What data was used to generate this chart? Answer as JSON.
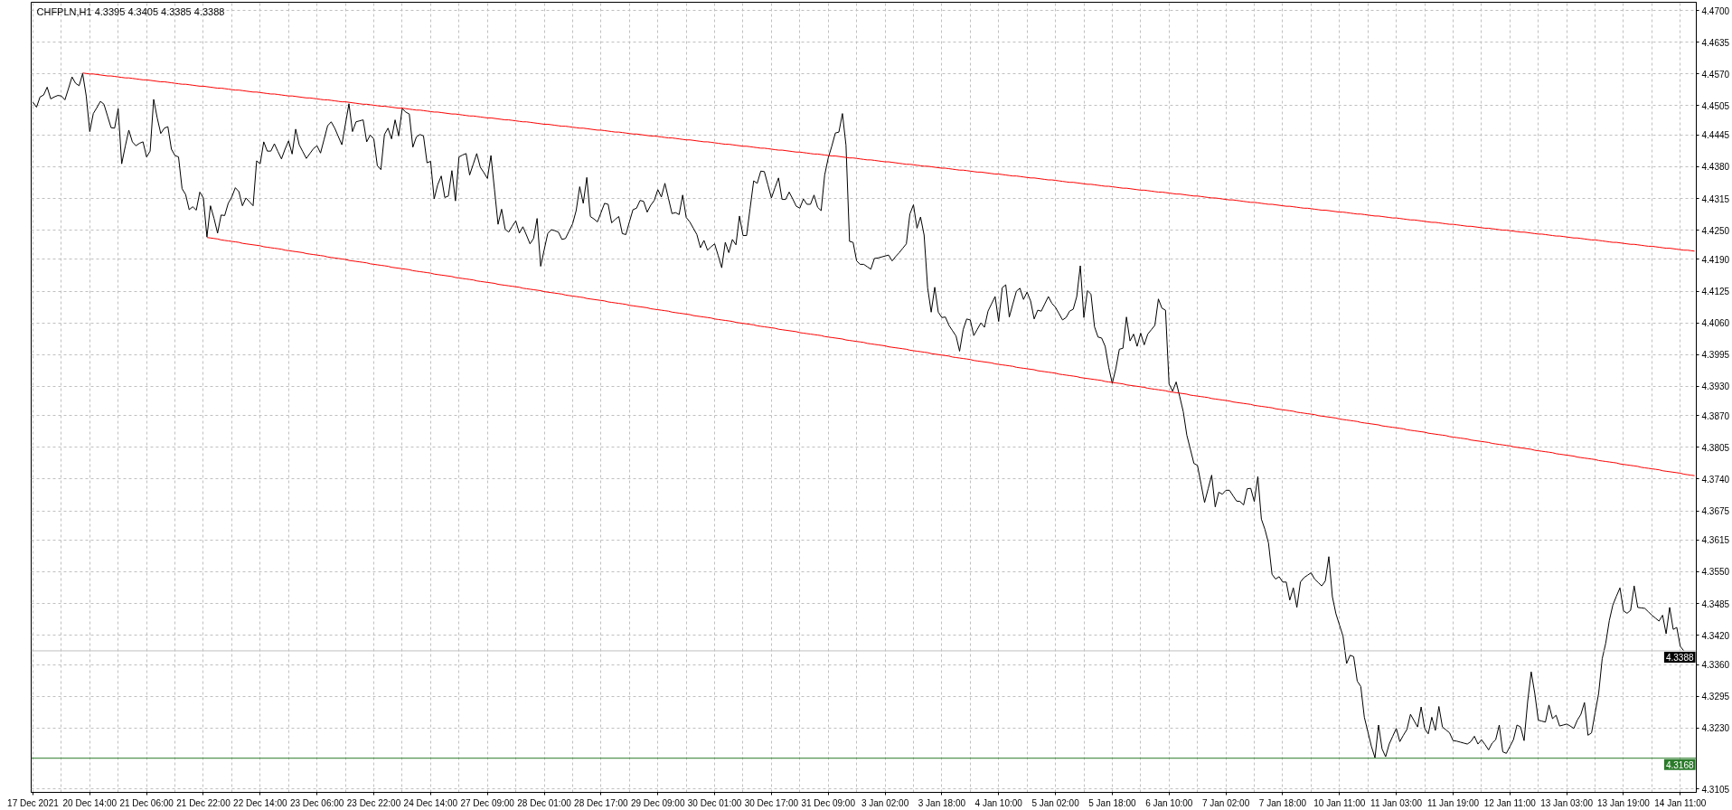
{
  "chart_data": {
    "type": "line",
    "title": "CHFPLN,H1  4.3395 4.3405 4.3385 4.3388",
    "categories": [
      "17 Dec 2021",
      null,
      null,
      null,
      null,
      null,
      null,
      null,
      null,
      null,
      null,
      null,
      null,
      null,
      null,
      null,
      "20 Dec 14:00",
      null,
      null,
      null,
      null,
      null,
      null,
      null,
      null,
      null,
      null,
      null,
      null,
      null,
      null,
      null,
      "21 Dec 06:00",
      null,
      null,
      null,
      null,
      null,
      null,
      null,
      null,
      null,
      null,
      null,
      null,
      null,
      null,
      null,
      "21 Dec 22:00",
      null,
      null,
      null,
      null,
      null,
      null,
      null,
      null,
      null,
      null,
      null,
      null,
      null,
      null,
      null,
      "22 Dec 14:00",
      null,
      null,
      null,
      null,
      null,
      null,
      null,
      null,
      null,
      null,
      null,
      null,
      null,
      null,
      null,
      "23 Dec 06:00",
      null,
      null,
      null,
      null,
      null,
      null,
      null,
      null,
      null,
      null,
      null,
      null,
      null,
      null,
      null,
      "23 Dec 22:00",
      null,
      null,
      null,
      null,
      null,
      null,
      null,
      null,
      null,
      null,
      null,
      null,
      null,
      null,
      null,
      "24 Dec 14:00",
      null,
      null,
      null,
      null,
      null,
      null,
      null,
      null,
      null,
      null,
      null,
      null,
      null,
      null,
      null,
      "27 Dec 09:00",
      null,
      null,
      null,
      null,
      null,
      null,
      null,
      null,
      null,
      null,
      null,
      null,
      null,
      null,
      null,
      "28 Dec 01:00",
      null,
      null,
      null,
      null,
      null,
      null,
      null,
      null,
      null,
      null,
      null,
      null,
      null,
      null,
      null,
      "28 Dec 17:00",
      null,
      null,
      null,
      null,
      null,
      null,
      null,
      null,
      null,
      null,
      null,
      null,
      null,
      null,
      null,
      "29 Dec 09:00",
      null,
      null,
      null,
      null,
      null,
      null,
      null,
      null,
      null,
      null,
      null,
      null,
      null,
      null,
      null,
      "30 Dec 01:00",
      null,
      null,
      null,
      null,
      null,
      null,
      null,
      null,
      null,
      null,
      null,
      null,
      null,
      null,
      null,
      "30 Dec 17:00",
      null,
      null,
      null,
      null,
      null,
      null,
      null,
      null,
      null,
      null,
      null,
      null,
      null,
      null,
      null,
      "31 Dec 09:00",
      null,
      null,
      null,
      null,
      null,
      null,
      null,
      null,
      null,
      null,
      null,
      null,
      null,
      null,
      null,
      "3 Jan 02:00",
      null,
      null,
      null,
      null,
      null,
      null,
      null,
      null,
      null,
      null,
      null,
      null,
      null,
      null,
      null,
      "3 Jan 18:00",
      null,
      null,
      null,
      null,
      null,
      null,
      null,
      null,
      null,
      null,
      null,
      null,
      null,
      null,
      null,
      "4 Jan 10:00",
      null,
      null,
      null,
      null,
      null,
      null,
      null,
      null,
      null,
      null,
      null,
      null,
      null,
      null,
      null,
      "5 Jan 02:00",
      null,
      null,
      null,
      null,
      null,
      null,
      null,
      null,
      null,
      null,
      null,
      null,
      null,
      null,
      null,
      "5 Jan 18:00",
      null,
      null,
      null,
      null,
      null,
      null,
      null,
      null,
      null,
      null,
      null,
      null,
      null,
      null,
      null,
      "6 Jan 10:00",
      null,
      null,
      null,
      null,
      null,
      null,
      null,
      null,
      null,
      null,
      null,
      null,
      null,
      null,
      null,
      "7 Jan 02:00",
      null,
      null,
      null,
      null,
      null,
      null,
      null,
      null,
      null,
      null,
      null,
      null,
      null,
      null,
      null,
      "7 Jan 18:00",
      null,
      null,
      null,
      null,
      null,
      null,
      null,
      null,
      null,
      null,
      null,
      null,
      null,
      null,
      null,
      "10 Jan 11:00",
      null,
      null,
      null,
      null,
      null,
      null,
      null,
      null,
      null,
      null,
      null,
      null,
      null,
      null,
      null,
      "11 Jan 03:00",
      null,
      null,
      null,
      null,
      null,
      null,
      null,
      null,
      null,
      null,
      null,
      null,
      null,
      null,
      null,
      "11 Jan 19:00",
      null,
      null,
      null,
      null,
      null,
      null,
      null,
      null,
      null,
      null,
      null,
      null,
      null,
      null,
      null,
      "12 Jan 11:00",
      null,
      null,
      null,
      null,
      null,
      null,
      null,
      null,
      null,
      null,
      null,
      null,
      null,
      null,
      null,
      "13 Jan 03:00",
      null,
      null,
      null,
      null,
      null,
      null,
      null,
      null,
      null,
      null,
      null,
      null,
      null,
      null,
      null,
      "13 Jan 19:00",
      null,
      null,
      null,
      null,
      null,
      null,
      null,
      null,
      null,
      null,
      null,
      null,
      null,
      null,
      null,
      "14 Jan 11:00",
      null,
      null,
      null,
      null
    ],
    "series": [
      {
        "color": "#000000",
        "values": [
          4.4512,
          4.4502,
          4.4523,
          4.4527,
          4.4543,
          4.4519,
          4.4523,
          4.4526,
          4.4525,
          4.4517,
          4.454,
          4.4564,
          4.4551,
          4.4546,
          4.4571,
          4.4525,
          4.4452,
          4.4489,
          4.4501,
          4.4514,
          4.4508,
          4.4484,
          4.446,
          4.4459,
          4.4499,
          4.4386,
          4.4422,
          4.4455,
          4.4431,
          4.4423,
          4.4428,
          4.4431,
          4.44,
          4.4412,
          4.4518,
          4.448,
          4.4448,
          4.4459,
          4.4462,
          4.4416,
          4.4403,
          4.44,
          4.4335,
          4.4323,
          4.4292,
          4.4298,
          4.4291,
          4.4328,
          4.4316,
          4.4236,
          4.43,
          4.4274,
          4.4244,
          4.4281,
          4.428,
          4.4305,
          4.4318,
          4.4337,
          4.4329,
          4.43,
          4.4316,
          4.4308,
          4.43,
          4.4392,
          4.4386,
          4.4431,
          4.4412,
          4.4412,
          4.4427,
          4.4411,
          4.4396,
          4.4416,
          4.4433,
          4.4406,
          4.4457,
          4.4425,
          4.4411,
          4.4397,
          4.4407,
          4.4417,
          4.4423,
          4.4408,
          4.4436,
          4.4464,
          4.4472,
          4.4459,
          4.4442,
          4.4425,
          4.4467,
          4.4509,
          4.4452,
          4.4472,
          4.4474,
          4.4476,
          4.4431,
          4.4445,
          4.4437,
          4.4382,
          4.4374,
          4.4446,
          4.4459,
          4.4437,
          4.4476,
          4.4443,
          4.4499,
          4.4492,
          4.4488,
          4.442,
          4.4441,
          4.4446,
          4.4443,
          4.4388,
          4.4391,
          4.4314,
          4.4343,
          4.4361,
          4.4317,
          4.432,
          4.4372,
          4.431,
          4.44,
          4.4404,
          4.4407,
          4.4363,
          4.4385,
          4.4407,
          4.4379,
          4.4368,
          4.4356,
          4.4403,
          4.4333,
          4.4262,
          4.4293,
          4.4252,
          4.4246,
          4.4258,
          4.4269,
          4.4244,
          4.4257,
          4.424,
          4.4222,
          4.4233,
          4.4274,
          4.4176,
          4.421,
          4.4243,
          4.4251,
          4.4249,
          4.4246,
          4.4231,
          4.4233,
          4.4248,
          4.4263,
          4.429,
          4.4339,
          4.4305,
          4.4358,
          4.4278,
          4.4273,
          4.4267,
          4.4286,
          4.4305,
          4.4303,
          4.4265,
          4.4272,
          4.4278,
          4.4243,
          4.4241,
          4.4267,
          4.4292,
          4.4295,
          4.4311,
          4.4309,
          4.4287,
          4.4301,
          4.4311,
          4.4333,
          4.4318,
          4.4346,
          4.4315,
          4.4284,
          4.4286,
          4.4282,
          4.4322,
          4.4276,
          4.4267,
          4.4254,
          4.4241,
          4.4214,
          4.4229,
          4.4209,
          4.4216,
          4.4222,
          4.4198,
          4.4173,
          4.4225,
          4.4204,
          4.4231,
          4.422,
          4.4279,
          4.4239,
          4.4239,
          4.4295,
          4.4351,
          4.4346,
          4.4371,
          4.437,
          4.4343,
          4.4316,
          4.4337,
          4.4357,
          4.4313,
          4.4313,
          4.4328,
          4.4314,
          4.4299,
          4.4295,
          4.4314,
          4.4303,
          4.4303,
          4.4322,
          4.4297,
          4.429,
          4.4363,
          4.4398,
          4.4422,
          4.4449,
          4.4451,
          4.4489,
          4.4424,
          4.4227,
          4.4225,
          4.4187,
          4.418,
          4.418,
          4.4175,
          4.417,
          4.4192,
          4.4193,
          4.4195,
          4.4197,
          4.4199,
          4.4187,
          4.4196,
          4.4204,
          4.4213,
          4.4222,
          4.4283,
          4.4302,
          4.4254,
          4.4277,
          4.424,
          4.4132,
          4.4082,
          4.4133,
          4.4082,
          4.4071,
          4.4072,
          4.4055,
          4.4044,
          4.4033,
          4.4002,
          4.4046,
          4.4068,
          4.4066,
          4.4034,
          4.4047,
          4.406,
          4.4051,
          4.4084,
          4.4099,
          4.4114,
          4.4063,
          4.4132,
          4.4138,
          4.4072,
          4.4099,
          4.4125,
          4.4131,
          4.4108,
          4.4123,
          4.4105,
          4.4068,
          4.4086,
          4.4084,
          4.4099,
          4.4114,
          4.41,
          4.4092,
          4.4079,
          4.4066,
          4.4071,
          4.4084,
          4.4088,
          4.4114,
          4.4177,
          4.4071,
          4.4126,
          4.4119,
          4.4052,
          4.4031,
          4.4029,
          4.4012,
          4.3969,
          4.3936,
          4.3966,
          4.4006,
          4.4008,
          4.4072,
          4.4023,
          4.4037,
          4.4012,
          4.4039,
          4.4015,
          4.4037,
          4.4046,
          4.4055,
          4.4109,
          4.409,
          4.4086,
          4.3935,
          4.392,
          4.3939,
          4.3909,
          4.3878,
          4.383,
          4.3801,
          4.3772,
          4.3768,
          4.373,
          4.3692,
          4.372,
          4.3748,
          4.3683,
          4.3713,
          4.3709,
          4.3717,
          4.3717,
          4.3706,
          4.3695,
          4.3694,
          4.3687,
          4.372,
          4.3721,
          4.3694,
          4.3745,
          4.3658,
          4.3637,
          4.3609,
          4.3545,
          4.3535,
          4.354,
          4.3529,
          4.3529,
          4.3492,
          4.3517,
          4.3477,
          4.3529,
          4.3538,
          4.3543,
          4.3548,
          4.3535,
          4.3528,
          4.3521,
          4.3531,
          4.3581,
          4.3499,
          4.3464,
          4.3441,
          4.3418,
          4.3362,
          4.3379,
          4.3376,
          4.3326,
          4.3315,
          4.3252,
          4.3222,
          4.3192,
          4.3169,
          4.3236,
          4.3187,
          4.3171,
          4.3197,
          4.3213,
          4.3229,
          4.3202,
          4.3215,
          4.3227,
          4.3258,
          4.3245,
          4.3232,
          4.3273,
          4.3229,
          4.3218,
          4.3252,
          4.3225,
          4.3274,
          4.3232,
          4.3226,
          4.322,
          4.3204,
          4.3203,
          4.3201,
          4.3199,
          4.3197,
          4.3202,
          4.3213,
          4.3197,
          4.3206,
          4.3196,
          4.3185,
          4.3199,
          4.3206,
          4.3236,
          4.3181,
          4.3178,
          4.3192,
          4.3206,
          4.3236,
          4.3232,
          4.3204,
          4.3284,
          4.3345,
          4.3301,
          4.3246,
          4.3244,
          4.3242,
          4.3277,
          4.3249,
          4.3256,
          4.3234,
          4.3236,
          4.3238,
          4.3234,
          4.3229,
          4.3246,
          4.3258,
          4.3282,
          4.3215,
          4.322,
          4.3261,
          4.3301,
          4.3372,
          4.3404,
          4.345,
          4.3482,
          4.35,
          4.3517,
          4.347,
          4.3465,
          4.3471,
          4.3521,
          4.3477,
          4.3476,
          4.3475,
          4.3468,
          4.3461,
          4.3455,
          4.3449,
          4.3461,
          4.3423,
          4.3477,
          4.3432,
          4.3436,
          4.3397,
          4.3388,
          null,
          null,
          null
        ]
      },
      {
        "color": "#ff0000",
        "values": [
          null,
          null,
          null,
          null,
          null,
          null,
          null,
          null,
          null,
          null,
          null,
          null,
          null,
          null,
          4.4572,
          4.4571,
          4.457,
          4.457,
          4.4569,
          4.4568,
          4.4567,
          4.4566,
          4.4566,
          4.4565,
          4.4564,
          4.4563,
          4.4562,
          4.4562,
          4.4561,
          4.456,
          4.4559,
          4.4558,
          4.4558,
          4.4557,
          4.4556,
          4.4555,
          4.4554,
          4.4554,
          4.4553,
          4.4552,
          4.4551,
          4.455,
          4.4549,
          4.4549,
          4.4548,
          4.4547,
          4.4546,
          4.4545,
          4.4545,
          4.4544,
          4.4543,
          4.4542,
          4.4541,
          4.4541,
          4.454,
          4.4539,
          4.4538,
          4.4537,
          4.4537,
          4.4536,
          4.4535,
          4.4534,
          4.4533,
          4.4533,
          4.4532,
          4.4531,
          4.453,
          4.4529,
          4.4529,
          4.4528,
          4.4527,
          4.4526,
          4.4525,
          4.4525,
          4.4524,
          4.4523,
          4.4522,
          4.4521,
          4.4521,
          4.452,
          4.4519,
          4.4518,
          4.4517,
          4.4517,
          4.4516,
          4.4515,
          4.4514,
          4.4513,
          4.4513,
          4.4512,
          4.4511,
          4.451,
          4.4509,
          4.4508,
          4.4508,
          4.4507,
          4.4506,
          4.4505,
          4.4504,
          4.4504,
          4.4503,
          4.4502,
          4.4501,
          4.45,
          4.45,
          4.4499,
          4.4498,
          4.4497,
          4.4496,
          4.4496,
          4.4495,
          4.4494,
          4.4493,
          4.4492,
          4.4492,
          4.4491,
          4.449,
          4.4489,
          4.4488,
          4.4488,
          4.4487,
          4.4486,
          4.4485,
          4.4484,
          4.4484,
          4.4483,
          4.4482,
          4.4481,
          4.448,
          4.448,
          4.4479,
          4.4478,
          4.4477,
          4.4476,
          4.4476,
          4.4475,
          4.4474,
          4.4473,
          4.4472,
          4.4472,
          4.4471,
          4.447,
          4.4469,
          4.4468,
          4.4467,
          4.4467,
          4.4466,
          4.4465,
          4.4464,
          4.4463,
          4.4463,
          4.4462,
          4.4461,
          4.446,
          4.4459,
          4.4459,
          4.4458,
          4.4457,
          4.4456,
          4.4455,
          4.4455,
          4.4454,
          4.4453,
          4.4452,
          4.4451,
          4.4451,
          4.445,
          4.4449,
          4.4448,
          4.4447,
          4.4447,
          4.4446,
          4.4445,
          4.4444,
          4.4443,
          4.4443,
          4.4442,
          4.4441,
          4.444,
          4.4439,
          4.4439,
          4.4438,
          4.4437,
          4.4436,
          4.4435,
          4.4435,
          4.4434,
          4.4433,
          4.4432,
          4.4431,
          4.4431,
          4.443,
          4.4429,
          4.4428,
          4.4427,
          4.4426,
          4.4426,
          4.4425,
          4.4424,
          4.4423,
          4.4422,
          4.4422,
          4.4421,
          4.442,
          4.4419,
          4.4418,
          4.4418,
          4.4417,
          4.4416,
          4.4415,
          4.4414,
          4.4414,
          4.4413,
          4.4412,
          4.4411,
          4.441,
          4.441,
          4.4409,
          4.4408,
          4.4407,
          4.4406,
          4.4406,
          4.4405,
          4.4404,
          4.4403,
          4.4402,
          4.4402,
          4.4401,
          4.44,
          4.4399,
          4.4398,
          4.4398,
          4.4397,
          4.4396,
          4.4395,
          4.4394,
          4.4394,
          4.4393,
          4.4392,
          4.4391,
          4.439,
          4.439,
          4.4389,
          4.4388,
          4.4387,
          4.4386,
          4.4385,
          4.4385,
          4.4384,
          4.4383,
          4.4382,
          4.4381,
          4.4381,
          4.438,
          4.4379,
          4.4378,
          4.4377,
          4.4377,
          4.4376,
          4.4375,
          4.4374,
          4.4373,
          4.4373,
          4.4372,
          4.4371,
          4.437,
          4.4369,
          4.4369,
          4.4368,
          4.4367,
          4.4366,
          4.4365,
          4.4365,
          4.4364,
          4.4363,
          4.4362,
          4.4361,
          4.4361,
          4.436,
          4.4359,
          4.4358,
          4.4357,
          4.4357,
          4.4356,
          4.4355,
          4.4354,
          4.4353,
          4.4353,
          4.4352,
          4.4351,
          4.435,
          4.4349,
          4.4348,
          4.4348,
          4.4347,
          4.4346,
          4.4345,
          4.4344,
          4.4344,
          4.4343,
          4.4342,
          4.4341,
          4.434,
          4.434,
          4.4339,
          4.4338,
          4.4337,
          4.4336,
          4.4336,
          4.4335,
          4.4334,
          4.4333,
          4.4332,
          4.4332,
          4.4331,
          4.433,
          4.4329,
          4.4328,
          4.4328,
          4.4327,
          4.4326,
          4.4325,
          4.4324,
          4.4324,
          4.4323,
          4.4322,
          4.4321,
          4.432,
          4.432,
          4.4319,
          4.4318,
          4.4317,
          4.4316,
          4.4316,
          4.4315,
          4.4314,
          4.4313,
          4.4312,
          4.4312,
          4.4311,
          4.431,
          4.4309,
          4.4308,
          4.4307,
          4.4307,
          4.4306,
          4.4305,
          4.4304,
          4.4303,
          4.4303,
          4.4302,
          4.4301,
          4.43,
          4.4299,
          4.4299,
          4.4298,
          4.4297,
          4.4296,
          4.4295,
          4.4295,
          4.4294,
          4.4293,
          4.4292,
          4.4291,
          4.4291,
          4.429,
          4.4289,
          4.4288,
          4.4287,
          4.4287,
          4.4286,
          4.4285,
          4.4284,
          4.4283,
          4.4283,
          4.4282,
          4.4281,
          4.428,
          4.4279,
          4.4279,
          4.4278,
          4.4277,
          4.4276,
          4.4275,
          4.4275,
          4.4274,
          4.4273,
          4.4272,
          4.4271,
          4.4271,
          4.427,
          4.4269,
          4.4268,
          4.4267,
          4.4266,
          4.4266,
          4.4265,
          4.4264,
          4.4263,
          4.4262,
          4.4262,
          4.4261,
          4.426,
          4.4259,
          4.4258,
          4.4258,
          4.4257,
          4.4256,
          4.4255,
          4.4254,
          4.4254,
          4.4253,
          4.4252,
          4.4251,
          4.425,
          4.425,
          4.4249,
          4.4248,
          4.4247,
          4.4246,
          4.4246,
          4.4245,
          4.4244,
          4.4243,
          4.4242,
          4.4242,
          4.4241,
          4.424,
          4.4239,
          4.4238,
          4.4238,
          4.4237,
          4.4236,
          4.4235,
          4.4234,
          4.4234,
          4.4233,
          4.4232,
          4.4231,
          4.423,
          4.423,
          4.4229,
          4.4228,
          4.4227,
          4.4226,
          4.4225,
          4.4225,
          4.4224,
          4.4223,
          4.4222,
          4.4221,
          4.4221,
          4.422,
          4.4219,
          4.4218,
          4.4217,
          4.4217,
          4.4216,
          4.4215,
          4.4214,
          4.4213,
          4.4213,
          4.4212,
          4.4211,
          4.421,
          4.4209,
          4.4209,
          4.4208,
          4.4207
        ]
      },
      {
        "color": "#ff0000",
        "values": [
          null,
          null,
          null,
          null,
          null,
          null,
          null,
          null,
          null,
          null,
          null,
          null,
          null,
          null,
          null,
          null,
          null,
          null,
          null,
          null,
          null,
          null,
          null,
          null,
          null,
          null,
          null,
          null,
          null,
          null,
          null,
          null,
          null,
          null,
          null,
          null,
          null,
          null,
          null,
          null,
          null,
          null,
          null,
          null,
          null,
          null,
          null,
          null,
          null,
          4.4235,
          4.4234,
          4.4233,
          4.4232,
          4.423,
          4.4229,
          4.4228,
          4.4227,
          4.4226,
          4.4225,
          4.4223,
          4.4222,
          4.4221,
          4.422,
          4.4219,
          4.4218,
          4.4216,
          4.4215,
          4.4214,
          4.4213,
          4.4212,
          4.4211,
          4.4209,
          4.4208,
          4.4207,
          4.4206,
          4.4205,
          4.4204,
          4.4202,
          4.4201,
          4.42,
          4.4199,
          4.4198,
          4.4197,
          4.4195,
          4.4194,
          4.4193,
          4.4192,
          4.4191,
          4.419,
          4.4188,
          4.4187,
          4.4186,
          4.4185,
          4.4184,
          4.4183,
          4.4181,
          4.418,
          4.4179,
          4.4178,
          4.4177,
          4.4176,
          4.4174,
          4.4173,
          4.4172,
          4.4171,
          4.417,
          4.4169,
          4.4167,
          4.4166,
          4.4165,
          4.4164,
          4.4163,
          4.4162,
          4.416,
          4.4159,
          4.4158,
          4.4157,
          4.4156,
          4.4155,
          4.4153,
          4.4152,
          4.4151,
          4.415,
          4.4149,
          4.4148,
          4.4146,
          4.4145,
          4.4144,
          4.4143,
          4.4142,
          4.4141,
          4.4139,
          4.4138,
          4.4137,
          4.4136,
          4.4135,
          4.4134,
          4.4133,
          4.4131,
          4.413,
          4.4129,
          4.4128,
          4.4127,
          4.4126,
          4.4124,
          4.4123,
          4.4122,
          4.4121,
          4.412,
          4.4119,
          4.4117,
          4.4116,
          4.4115,
          4.4114,
          4.4113,
          4.4112,
          4.411,
          4.4109,
          4.4108,
          4.4107,
          4.4106,
          4.4105,
          4.4103,
          4.4102,
          4.4101,
          4.41,
          4.4099,
          4.4098,
          4.4096,
          4.4095,
          4.4094,
          4.4093,
          4.4092,
          4.4091,
          4.4089,
          4.4088,
          4.4087,
          4.4086,
          4.4085,
          4.4084,
          4.4082,
          4.4081,
          4.408,
          4.4079,
          4.4078,
          4.4077,
          4.4075,
          4.4074,
          4.4073,
          4.4072,
          4.4071,
          4.407,
          4.4068,
          4.4067,
          4.4066,
          4.4065,
          4.4064,
          4.4063,
          4.4061,
          4.406,
          4.4059,
          4.4058,
          4.4057,
          4.4056,
          4.4054,
          4.4053,
          4.4052,
          4.4051,
          4.405,
          4.4049,
          4.4047,
          4.4046,
          4.4045,
          4.4044,
          4.4043,
          4.4042,
          4.404,
          4.4039,
          4.4038,
          4.4037,
          4.4036,
          4.4035,
          4.4034,
          4.4032,
          4.4031,
          4.403,
          4.4029,
          4.4028,
          4.4027,
          4.4025,
          4.4024,
          4.4023,
          4.4022,
          4.4021,
          4.402,
          4.4018,
          4.4017,
          4.4016,
          4.4015,
          4.4014,
          4.4013,
          4.4011,
          4.401,
          4.4009,
          4.4008,
          4.4007,
          4.4006,
          4.4004,
          4.4003,
          4.4002,
          4.4001,
          4.4,
          4.3999,
          4.3997,
          4.3996,
          4.3995,
          4.3994,
          4.3993,
          4.3992,
          4.399,
          4.3989,
          4.3988,
          4.3987,
          4.3986,
          4.3985,
          4.3983,
          4.3982,
          4.3981,
          4.398,
          4.3979,
          4.3978,
          4.3976,
          4.3975,
          4.3974,
          4.3973,
          4.3972,
          4.3971,
          4.3969,
          4.3968,
          4.3967,
          4.3966,
          4.3965,
          4.3964,
          4.3962,
          4.3961,
          4.396,
          4.3959,
          4.3958,
          4.3957,
          4.3955,
          4.3954,
          4.3953,
          4.3952,
          4.3951,
          4.395,
          4.3948,
          4.3947,
          4.3946,
          4.3945,
          4.3944,
          4.3943,
          4.3942,
          4.394,
          4.3939,
          4.3938,
          4.3937,
          4.3936,
          4.3935,
          4.3933,
          4.3932,
          4.3931,
          4.393,
          4.3929,
          4.3928,
          4.3926,
          4.3925,
          4.3924,
          4.3923,
          4.3922,
          4.3921,
          4.3919,
          4.3918,
          4.3917,
          4.3916,
          4.3915,
          4.3914,
          4.3912,
          4.3911,
          4.391,
          4.3909,
          4.3908,
          4.3907,
          4.3905,
          4.3904,
          4.3903,
          4.3902,
          4.3901,
          4.39,
          4.3898,
          4.3897,
          4.3896,
          4.3895,
          4.3894,
          4.3893,
          4.3891,
          4.389,
          4.3889,
          4.3888,
          4.3887,
          4.3886,
          4.3884,
          4.3883,
          4.3882,
          4.3881,
          4.388,
          4.3879,
          4.3877,
          4.3876,
          4.3875,
          4.3874,
          4.3873,
          4.3872,
          4.387,
          4.3869,
          4.3868,
          4.3867,
          4.3866,
          4.3865,
          4.3863,
          4.3862,
          4.3861,
          4.386,
          4.3859,
          4.3858,
          4.3856,
          4.3855,
          4.3854,
          4.3853,
          4.3852,
          4.3851,
          4.3849,
          4.3848,
          4.3847,
          4.3846,
          4.3845,
          4.3844,
          4.3843,
          4.3841,
          4.384,
          4.3839,
          4.3838,
          4.3837,
          4.3836,
          4.3834,
          4.3833,
          4.3832,
          4.3831,
          4.383,
          4.3829,
          4.3827,
          4.3826,
          4.3825,
          4.3824,
          4.3823,
          4.3822,
          4.382,
          4.3819,
          4.3818,
          4.3817,
          4.3816,
          4.3815,
          4.3813,
          4.3812,
          4.3811,
          4.381,
          4.3809,
          4.3808,
          4.3806,
          4.3805,
          4.3804,
          4.3803,
          4.3802,
          4.3801,
          4.3799,
          4.3798,
          4.3797,
          4.3796,
          4.3795,
          4.3794,
          4.3792,
          4.3791,
          4.379,
          4.3789,
          4.3788,
          4.3787,
          4.3785,
          4.3784,
          4.3783,
          4.3782,
          4.3781,
          4.378,
          4.3778,
          4.3777,
          4.3776,
          4.3775,
          4.3774,
          4.3773,
          4.3771,
          4.377,
          4.3769,
          4.3768,
          4.3767,
          4.3766,
          4.3764,
          4.3763,
          4.3762,
          4.3761,
          4.376,
          4.3759,
          4.3757,
          4.3756,
          4.3755,
          4.3754,
          4.3753,
          4.3752,
          4.375,
          4.3749,
          4.3748,
          4.3747
        ]
      }
    ],
    "ylim": [
      4.3098,
      4.4717
    ],
    "yticks": [
      {
        "value": 4.3105,
        "label": "4.3105"
      },
      {
        "value": 4.323,
        "label": "4.3230"
      },
      {
        "value": 4.3295,
        "label": "4.3295"
      },
      {
        "value": 4.336,
        "label": "4.3360"
      },
      {
        "value": 4.342,
        "label": "4.3420"
      },
      {
        "value": 4.3485,
        "label": "4.3485"
      },
      {
        "value": 4.355,
        "label": "4.3550"
      },
      {
        "value": 4.3615,
        "label": "4.3615"
      },
      {
        "value": 4.3675,
        "label": "4.3675"
      },
      {
        "value": 4.374,
        "label": "4.3740"
      },
      {
        "value": 4.3805,
        "label": "4.3805"
      },
      {
        "value": 4.387,
        "label": "4.3870"
      },
      {
        "value": 4.393,
        "label": "4.3930"
      },
      {
        "value": 4.3995,
        "label": "4.3995"
      },
      {
        "value": 4.406,
        "label": "4.4060"
      },
      {
        "value": 4.4125,
        "label": "4.4125"
      },
      {
        "value": 4.419,
        "label": "4.4190"
      },
      {
        "value": 4.425,
        "label": "4.4250"
      },
      {
        "value": 4.4315,
        "label": "4.4315"
      },
      {
        "value": 4.438,
        "label": "4.4380"
      },
      {
        "value": 4.4445,
        "label": "4.4445"
      },
      {
        "value": 4.4505,
        "label": "4.4505"
      },
      {
        "value": 4.457,
        "label": "4.4570"
      },
      {
        "value": 4.4635,
        "label": "4.4635"
      },
      {
        "value": 4.47,
        "label": "4.4700"
      }
    ],
    "ref_lines": [
      {
        "axis": "y",
        "value": 4.3388,
        "label": "4.3388",
        "color": "#c0c0c0"
      },
      {
        "axis": "y",
        "value": 4.3168,
        "label": "4.3168",
        "color": "#2a7a2a"
      }
    ],
    "grid": true
  }
}
